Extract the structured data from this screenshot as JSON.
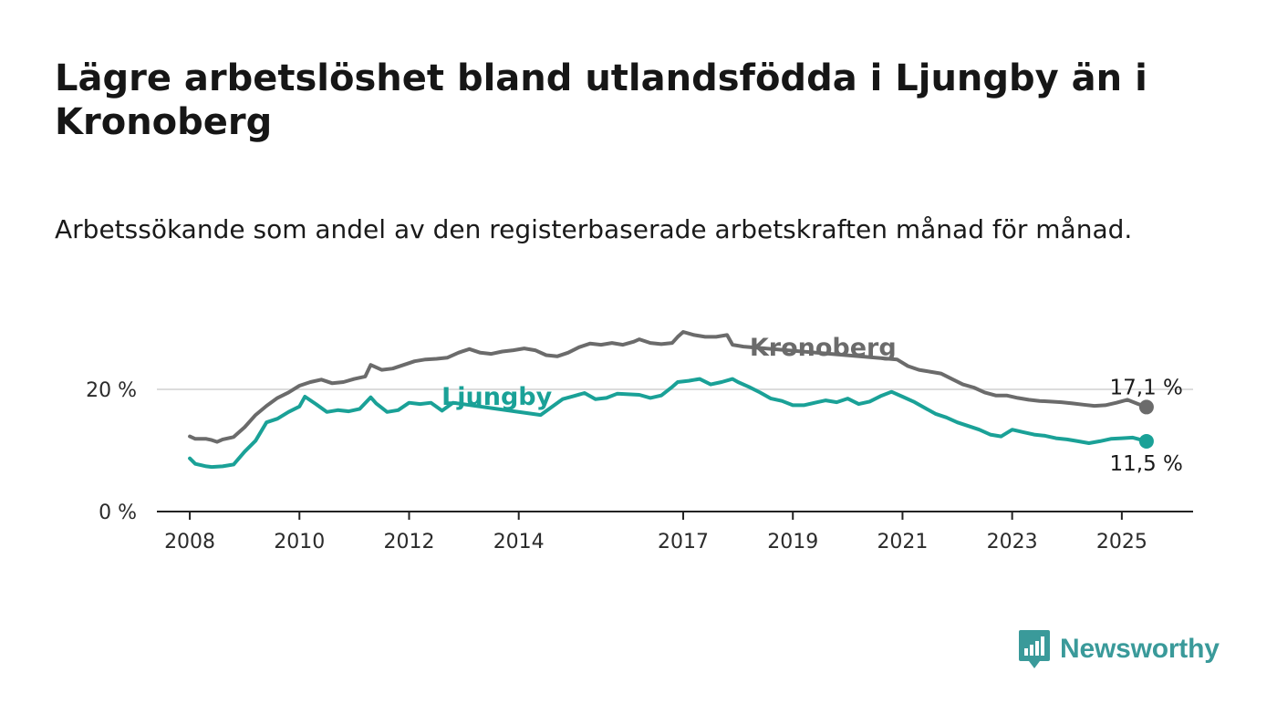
{
  "title": "Lägre arbetslöshet bland utlandsfödda i Ljungby än i Kronoberg",
  "subtitle": "Arbetssökande som andel av den registerbaserade arbetskraften månad för månad.",
  "brand": {
    "name": "Newsworthy",
    "color": "#3a9a9a",
    "icon": "bar-chart-speech-bubble-icon"
  },
  "chart_data": {
    "type": "line",
    "x_unit": "year",
    "xlim": [
      2007.4,
      2026.3
    ],
    "ylim": [
      0,
      30
    ],
    "y_ticks": [
      {
        "value": 0,
        "label": "0 %"
      },
      {
        "value": 20,
        "label": "20 %"
      }
    ],
    "x_ticks": [
      {
        "value": 2008,
        "label": "2008"
      },
      {
        "value": 2010,
        "label": "2010"
      },
      {
        "value": 2012,
        "label": "2012"
      },
      {
        "value": 2014,
        "label": "2014"
      },
      {
        "value": 2017,
        "label": "2017"
      },
      {
        "value": 2019,
        "label": "2019"
      },
      {
        "value": 2021,
        "label": "2021"
      },
      {
        "value": 2023,
        "label": "2023"
      },
      {
        "value": 2025,
        "label": "2025"
      }
    ],
    "grid": "horizontal at 20 %",
    "series": [
      {
        "name": "Kronoberg",
        "color": "#6b6b6b",
        "end_label": "17,1 %",
        "points": [
          [
            2008.0,
            12.3
          ],
          [
            2008.1,
            11.9
          ],
          [
            2008.3,
            11.9
          ],
          [
            2008.4,
            11.7
          ],
          [
            2008.5,
            11.4
          ],
          [
            2008.6,
            11.8
          ],
          [
            2008.8,
            12.2
          ],
          [
            2009.0,
            13.8
          ],
          [
            2009.2,
            15.8
          ],
          [
            2009.4,
            17.3
          ],
          [
            2009.6,
            18.6
          ],
          [
            2009.8,
            19.5
          ],
          [
            2010.0,
            20.6
          ],
          [
            2010.2,
            21.2
          ],
          [
            2010.4,
            21.6
          ],
          [
            2010.6,
            21.0
          ],
          [
            2010.8,
            21.2
          ],
          [
            2011.0,
            21.7
          ],
          [
            2011.2,
            22.1
          ],
          [
            2011.3,
            24.0
          ],
          [
            2011.5,
            23.2
          ],
          [
            2011.7,
            23.4
          ],
          [
            2011.9,
            24.0
          ],
          [
            2012.1,
            24.6
          ],
          [
            2012.3,
            24.9
          ],
          [
            2012.5,
            25.0
          ],
          [
            2012.7,
            25.2
          ],
          [
            2012.9,
            26.0
          ],
          [
            2013.1,
            26.6
          ],
          [
            2013.3,
            26.0
          ],
          [
            2013.5,
            25.8
          ],
          [
            2013.7,
            26.2
          ],
          [
            2013.9,
            26.4
          ],
          [
            2014.1,
            26.7
          ],
          [
            2014.3,
            26.4
          ],
          [
            2014.5,
            25.6
          ],
          [
            2014.7,
            25.4
          ],
          [
            2014.9,
            26.0
          ],
          [
            2015.1,
            26.9
          ],
          [
            2015.3,
            27.5
          ],
          [
            2015.5,
            27.3
          ],
          [
            2015.7,
            27.6
          ],
          [
            2015.9,
            27.3
          ],
          [
            2016.1,
            27.8
          ],
          [
            2016.2,
            28.2
          ],
          [
            2016.4,
            27.6
          ],
          [
            2016.6,
            27.4
          ],
          [
            2016.8,
            27.6
          ],
          [
            2016.9,
            28.6
          ],
          [
            2017.0,
            29.4
          ],
          [
            2017.2,
            28.9
          ],
          [
            2017.4,
            28.6
          ],
          [
            2017.6,
            28.6
          ],
          [
            2017.8,
            28.9
          ],
          [
            2017.9,
            27.3
          ],
          [
            2018.1,
            27.0
          ],
          [
            2020.9,
            24.9
          ],
          [
            2021.1,
            23.8
          ],
          [
            2021.3,
            23.2
          ],
          [
            2021.5,
            22.9
          ],
          [
            2021.7,
            22.6
          ],
          [
            2021.9,
            21.7
          ],
          [
            2022.1,
            20.8
          ],
          [
            2022.3,
            20.3
          ],
          [
            2022.5,
            19.5
          ],
          [
            2022.7,
            19.0
          ],
          [
            2022.9,
            19.0
          ],
          [
            2023.1,
            18.6
          ],
          [
            2023.3,
            18.3
          ],
          [
            2023.5,
            18.1
          ],
          [
            2023.7,
            18.0
          ],
          [
            2023.9,
            17.9
          ],
          [
            2024.1,
            17.7
          ],
          [
            2024.3,
            17.5
          ],
          [
            2024.5,
            17.3
          ],
          [
            2024.7,
            17.4
          ],
          [
            2024.9,
            17.8
          ],
          [
            2025.1,
            18.3
          ],
          [
            2025.3,
            17.6
          ],
          [
            2025.45,
            17.1
          ]
        ]
      },
      {
        "name": "Ljungby",
        "color": "#1aa197",
        "end_label": "11,5 %",
        "points": [
          [
            2008.0,
            8.7
          ],
          [
            2008.1,
            7.8
          ],
          [
            2008.3,
            7.4
          ],
          [
            2008.4,
            7.3
          ],
          [
            2008.6,
            7.4
          ],
          [
            2008.8,
            7.7
          ],
          [
            2009.0,
            9.8
          ],
          [
            2009.2,
            11.6
          ],
          [
            2009.4,
            14.6
          ],
          [
            2009.6,
            15.2
          ],
          [
            2009.8,
            16.3
          ],
          [
            2010.0,
            17.2
          ],
          [
            2010.1,
            18.8
          ],
          [
            2010.3,
            17.6
          ],
          [
            2010.5,
            16.3
          ],
          [
            2010.7,
            16.6
          ],
          [
            2010.9,
            16.4
          ],
          [
            2011.1,
            16.8
          ],
          [
            2011.3,
            18.7
          ],
          [
            2011.4,
            17.7
          ],
          [
            2011.6,
            16.3
          ],
          [
            2011.8,
            16.6
          ],
          [
            2012.0,
            17.8
          ],
          [
            2012.2,
            17.6
          ],
          [
            2012.4,
            17.8
          ],
          [
            2012.6,
            16.5
          ],
          [
            2012.8,
            17.8
          ],
          [
            2014.4,
            15.8
          ],
          [
            2014.8,
            18.4
          ],
          [
            2015.0,
            18.9
          ],
          [
            2015.2,
            19.4
          ],
          [
            2015.4,
            18.4
          ],
          [
            2015.6,
            18.6
          ],
          [
            2015.8,
            19.3
          ],
          [
            2016.0,
            19.2
          ],
          [
            2016.2,
            19.1
          ],
          [
            2016.4,
            18.6
          ],
          [
            2016.6,
            19.0
          ],
          [
            2016.8,
            20.4
          ],
          [
            2016.9,
            21.2
          ],
          [
            2017.1,
            21.4
          ],
          [
            2017.3,
            21.7
          ],
          [
            2017.5,
            20.8
          ],
          [
            2017.7,
            21.2
          ],
          [
            2017.9,
            21.7
          ],
          [
            2018.0,
            21.2
          ],
          [
            2018.2,
            20.4
          ],
          [
            2018.4,
            19.5
          ],
          [
            2018.6,
            18.5
          ],
          [
            2018.8,
            18.1
          ],
          [
            2019.0,
            17.4
          ],
          [
            2019.2,
            17.4
          ],
          [
            2019.4,
            17.8
          ],
          [
            2019.6,
            18.2
          ],
          [
            2019.8,
            17.9
          ],
          [
            2020.0,
            18.5
          ],
          [
            2020.2,
            17.6
          ],
          [
            2020.4,
            18.0
          ],
          [
            2020.6,
            18.9
          ],
          [
            2020.8,
            19.6
          ],
          [
            2021.0,
            18.8
          ],
          [
            2021.2,
            18.0
          ],
          [
            2021.4,
            17.0
          ],
          [
            2021.6,
            16.0
          ],
          [
            2021.8,
            15.4
          ],
          [
            2022.0,
            14.6
          ],
          [
            2022.2,
            14.0
          ],
          [
            2022.4,
            13.4
          ],
          [
            2022.6,
            12.6
          ],
          [
            2022.8,
            12.3
          ],
          [
            2023.0,
            13.4
          ],
          [
            2023.2,
            13.0
          ],
          [
            2023.4,
            12.6
          ],
          [
            2023.6,
            12.4
          ],
          [
            2023.8,
            12.0
          ],
          [
            2024.0,
            11.8
          ],
          [
            2024.2,
            11.5
          ],
          [
            2024.4,
            11.2
          ],
          [
            2024.6,
            11.5
          ],
          [
            2024.8,
            11.9
          ],
          [
            2025.0,
            12.0
          ],
          [
            2025.2,
            12.1
          ],
          [
            2025.45,
            11.5
          ]
        ]
      }
    ]
  }
}
